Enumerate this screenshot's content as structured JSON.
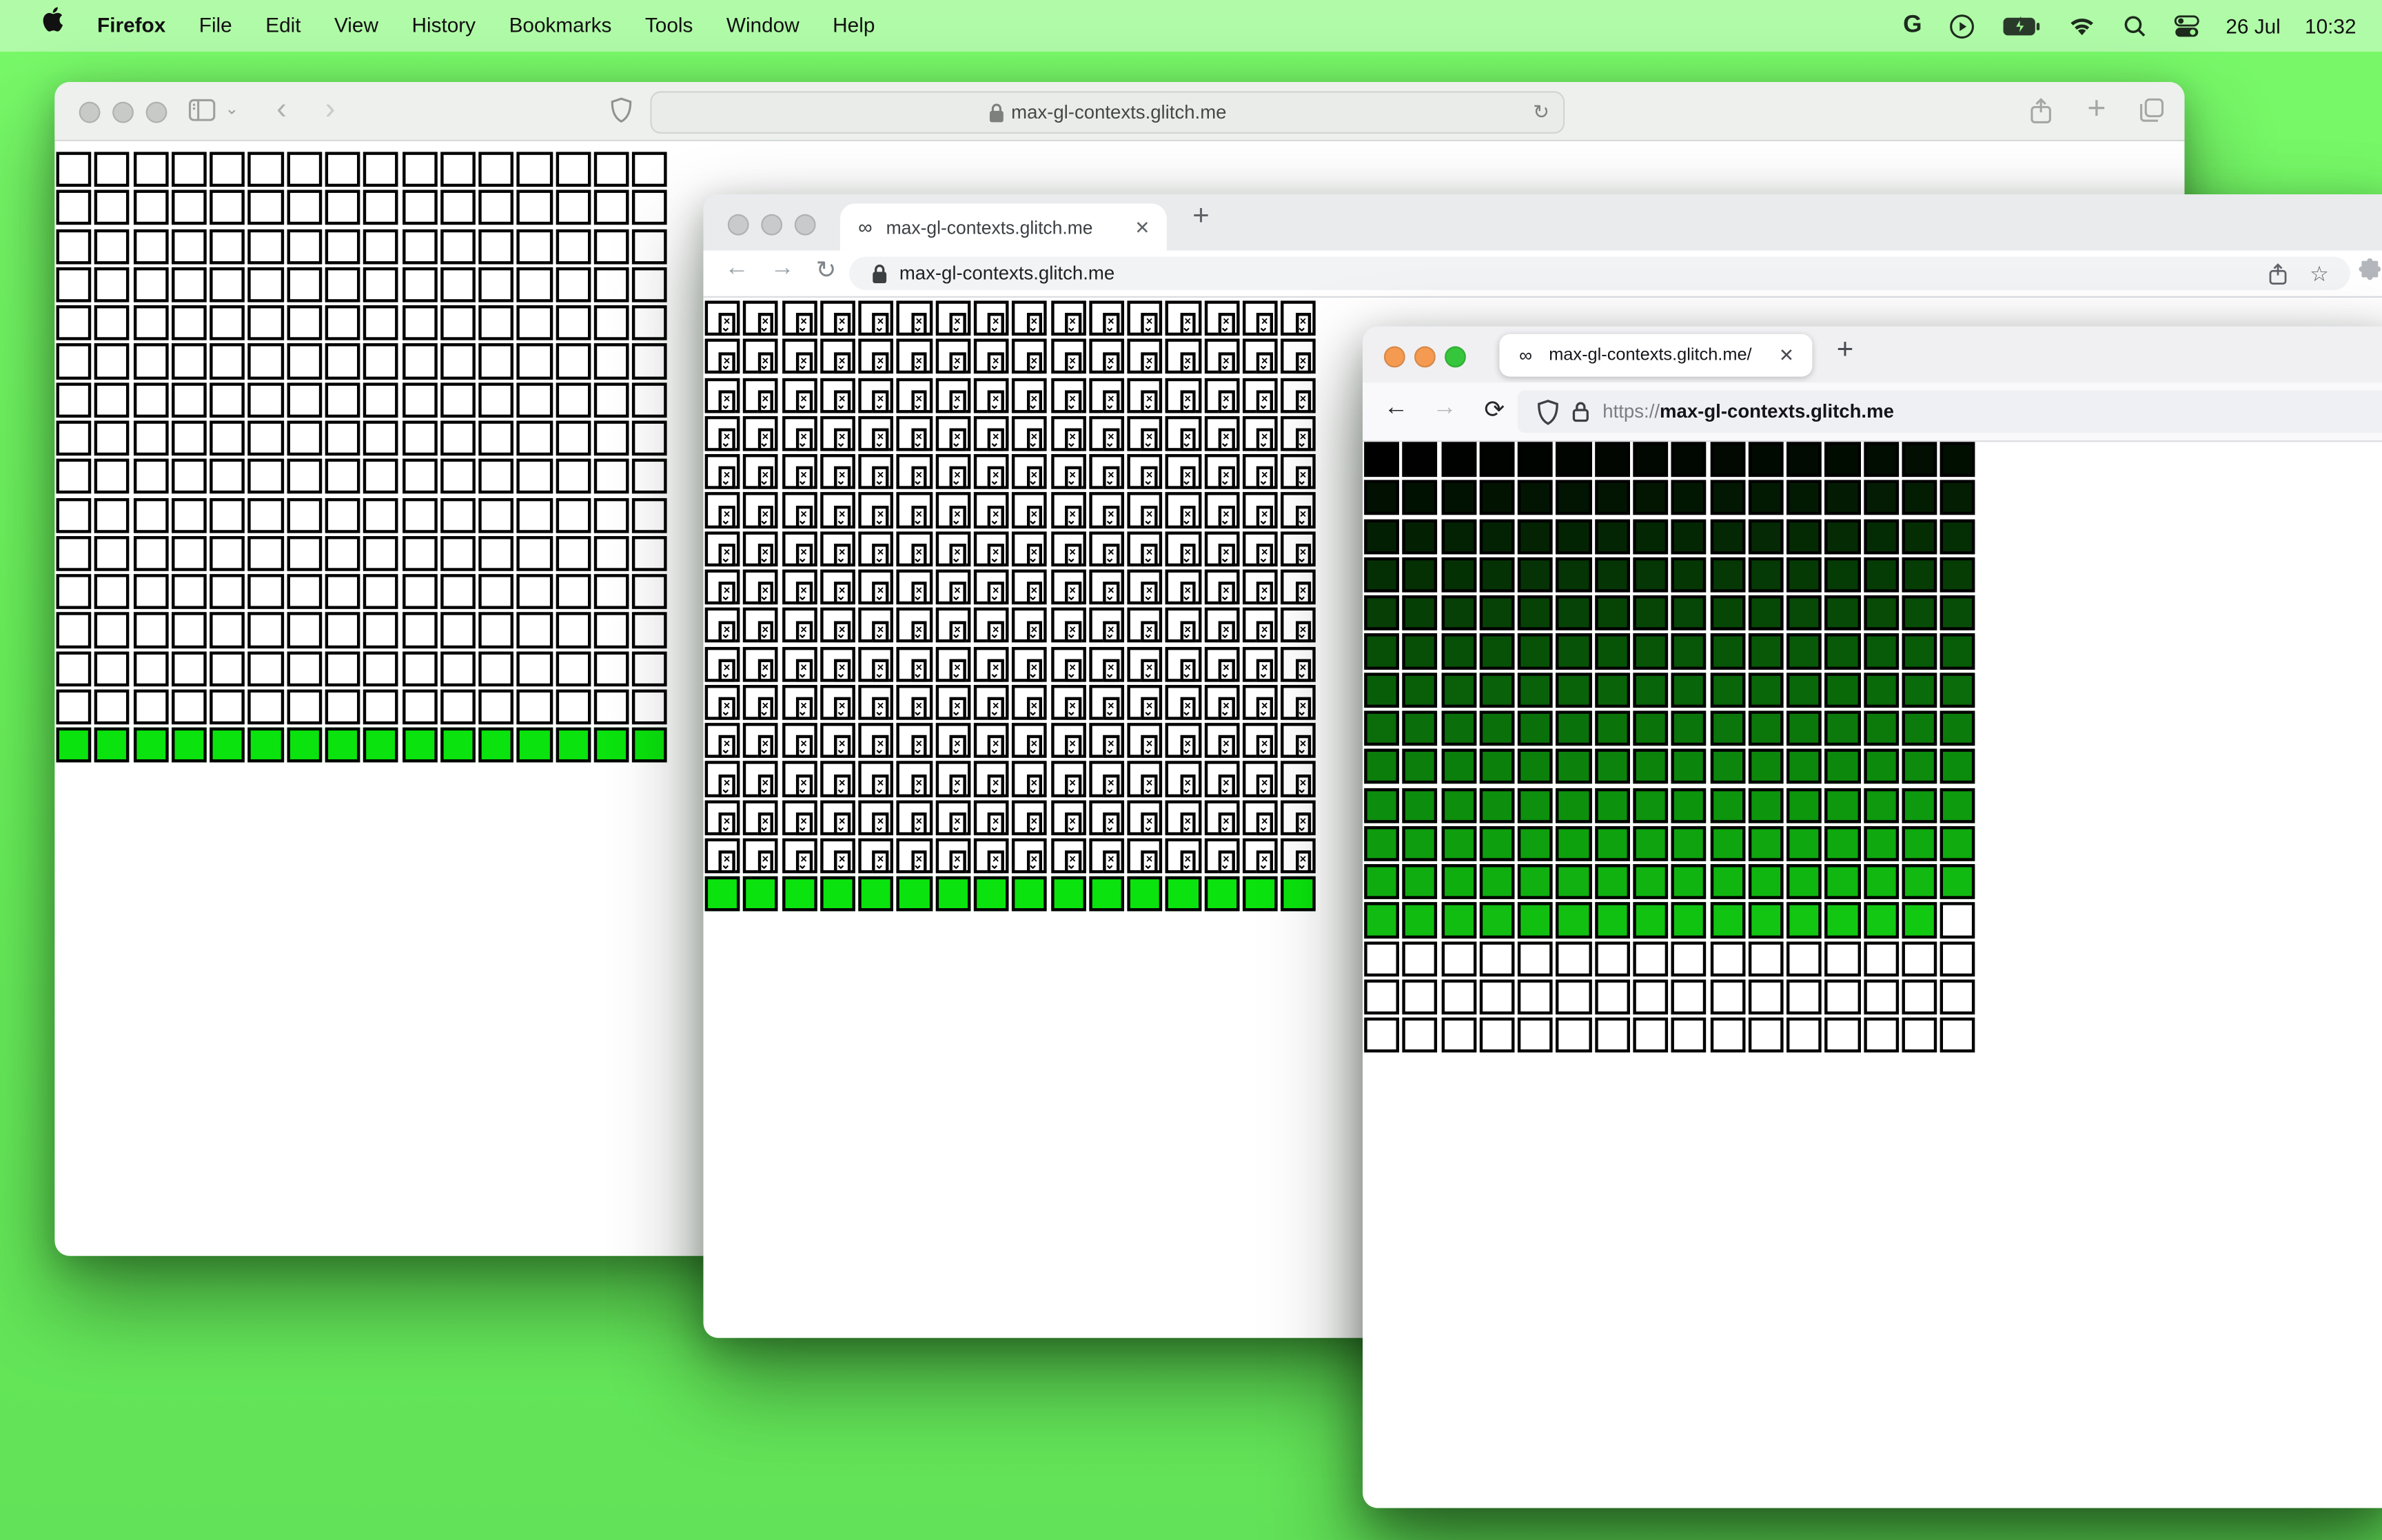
{
  "menu_bar": {
    "apple_icon": "apple-logo-icon",
    "items": [
      "Firefox",
      "File",
      "Edit",
      "View",
      "History",
      "Bookmarks",
      "Tools",
      "Window",
      "Help"
    ],
    "status_icons": [
      "google-icon",
      "play-circle-icon",
      "battery-charging-icon",
      "wifi-icon",
      "spotlight-search-icon",
      "control-center-icon"
    ],
    "date": "26 Jul",
    "time": "10:32"
  },
  "colors": {
    "desktop_green": "#6af25b",
    "bright_cell_green": "#0ae30d",
    "gradient_from": "#000000",
    "gradient_to": "#12ca12",
    "traffic_inactive": "#c7cac6",
    "firefox_traffic": [
      "#f59b51",
      "#f59b51",
      "#36c63c"
    ]
  },
  "safari": {
    "url": "max-gl-contexts.glitch.me",
    "toolbar_icons": [
      "sidebar-icon",
      "chevron-down-icon",
      "back-icon",
      "forward-icon",
      "shield-icon",
      "lock-icon",
      "reload-icon",
      "share-icon",
      "new-tab-icon",
      "tab-overview-icon"
    ],
    "glyphs": {
      "chevron": "⌄",
      "back": "‹",
      "forward": "›",
      "lock": "🔒",
      "reload": "↻",
      "plus": "+"
    },
    "grid": {
      "type": "white-green",
      "cols": 16,
      "rows": 16,
      "green_row": 15,
      "green": "#0ae30d",
      "cell_fill": "#ffffff"
    }
  },
  "chrome": {
    "tab_title": "max-gl-contexts.glitch.me",
    "tab_favicon": "∞",
    "tab_close": "✕",
    "new_tab": "+",
    "url": "max-gl-contexts.glitch.me",
    "nav_glyphs": {
      "back": "←",
      "forward": "→",
      "reload": "↻"
    },
    "toolbar_icons": [
      "back-icon",
      "forward-icon",
      "reload-icon",
      "lock-icon",
      "share-icon",
      "bookmark-star-icon",
      "extensions-puzzle-icon"
    ],
    "star": "☆",
    "grid": {
      "type": "broken-green",
      "cols": 16,
      "rows": 16,
      "green_row": 15,
      "green": "#0ae30d",
      "broken_x": "×",
      "broken_squiggle": "⌄"
    }
  },
  "firefox": {
    "tab_title": "max-gl-contexts.glitch.me/",
    "tab_favicon": "∞",
    "tab_close": "✕",
    "new_tab": "+",
    "url_scheme": "https://",
    "url_host": "max-gl-contexts.glitch.me",
    "nav_glyphs": {
      "back": "←",
      "forward": "→",
      "reload": "⟳"
    },
    "toolbar_icons": [
      "back-icon",
      "forward-icon",
      "reload-icon",
      "tracking-shield-icon",
      "lock-icon"
    ],
    "grid": {
      "type": "gradient-white",
      "cols": 16,
      "rows": 16,
      "gradient_rows": 13,
      "from": "#000000",
      "to": "#12ca12",
      "last_gradient_row_white_cells": 1,
      "trailing_white_rows": 3
    }
  }
}
